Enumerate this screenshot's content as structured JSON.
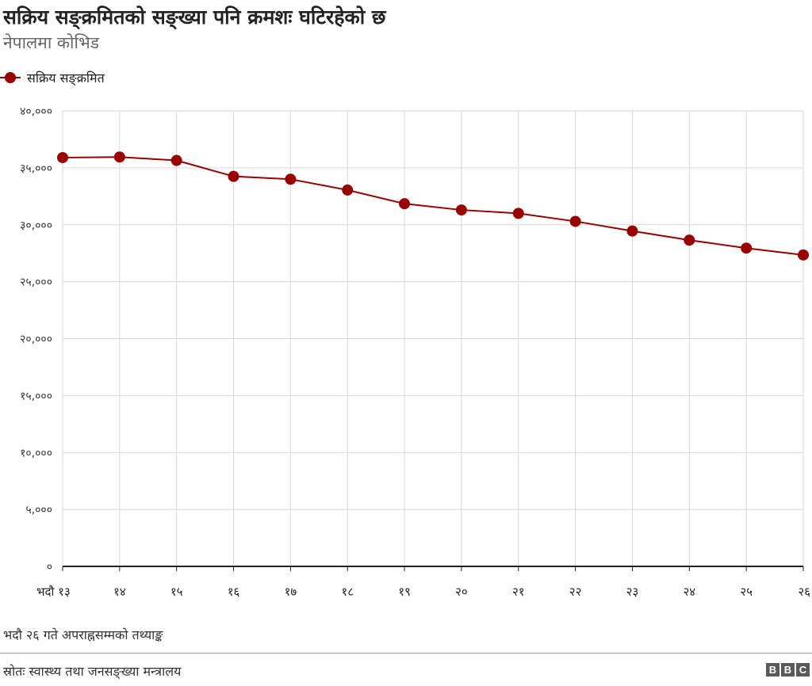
{
  "title": "सक्रिय सङ्क्रमितको सङ्ख्या पनि क्रमशः घटिरहेको छ",
  "subtitle": "नेपालमा कोभिड",
  "note": "भदौ २६ गते अपराह्नसम्मको तथ्याङ्क",
  "source": "स्रोतः स्वास्थ्य तथा जनसङ्ख्या मन्त्रालय",
  "logo": [
    "B",
    "B",
    "C"
  ],
  "colors": {
    "series": "#990000",
    "grid": "#d9d9d9",
    "axis": "#222222"
  },
  "chart_data": {
    "type": "line",
    "x": [
      "भदौ १३",
      "१४",
      "१५",
      "१६",
      "१७",
      "१८",
      "१९",
      "२०",
      "२१",
      "२२",
      "२३",
      "२४",
      "२५",
      "२६"
    ],
    "series": [
      {
        "name": "सक्रिय सङ्क्रमित",
        "values": [
          35900,
          35950,
          35650,
          34250,
          34000,
          33050,
          31850,
          31300,
          31000,
          30300,
          29450,
          28650,
          27950,
          27350
        ]
      }
    ],
    "ylim": [
      0,
      40000
    ],
    "yticks": [
      0,
      5000,
      10000,
      15000,
      20000,
      25000,
      30000,
      35000,
      40000
    ],
    "ytick_labels": [
      "०",
      "५,०००",
      "१०,०००",
      "१५,०००",
      "२०,०००",
      "२५,०००",
      "३०,०००",
      "३५,०००",
      "४०,०००"
    ],
    "grid": true,
    "legend": "top-left"
  }
}
